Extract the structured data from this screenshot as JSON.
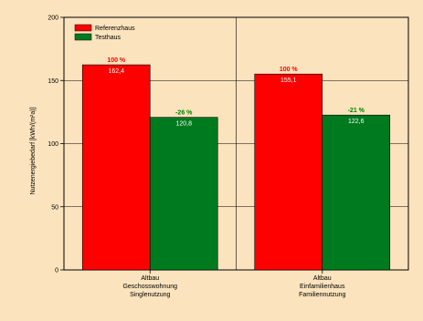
{
  "chart_data": {
    "type": "bar",
    "title": "",
    "xlabel": "",
    "ylabel": "Nutzenergiebedarf [kWh/(m²a)]",
    "ylim": [
      0,
      200
    ],
    "yticks": [
      0,
      50,
      100,
      150,
      200
    ],
    "grid": true,
    "legend_position": "top-left",
    "categories": [
      [
        "Altbau",
        "Geschosswohnung",
        "Singlenutzung"
      ],
      [
        "Altbau",
        "Einfamilienhaus",
        "Familiennutzung"
      ]
    ],
    "series": [
      {
        "name": "Referenzhaus",
        "color": "#ff0000",
        "values": [
          162.4,
          155.1
        ],
        "value_labels": [
          "162,4",
          "155,1"
        ],
        "percent_labels": [
          "100 %",
          "100 %"
        ]
      },
      {
        "name": "Testhaus",
        "color": "#007a1f",
        "values": [
          120.8,
          122.6
        ],
        "value_labels": [
          "120,8",
          "122,6"
        ],
        "percent_labels": [
          "-26 %",
          "-21 %"
        ]
      }
    ]
  }
}
